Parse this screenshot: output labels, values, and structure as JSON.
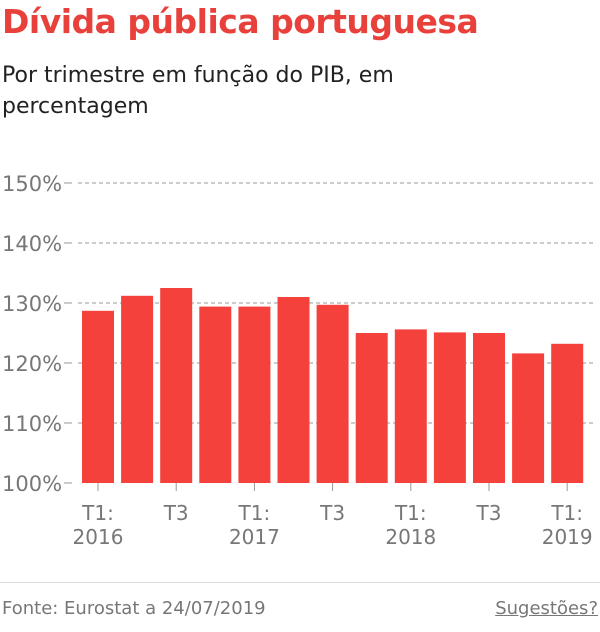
{
  "header": {
    "title": "Dívida pública portuguesa",
    "subtitle": "Por trimestre em função do PIB, em percentagem"
  },
  "footer": {
    "source": "Fonte: Eurostat a 24/07/2019",
    "suggestions_link": "Sugestões?"
  },
  "colors": {
    "bar": "#f4413c",
    "title": "#e8413b",
    "grid": "#999999"
  },
  "chart_data": {
    "type": "bar",
    "title": "Dívida pública portuguesa",
    "subtitle": "Por trimestre em função do PIB, em percentagem",
    "categories": [
      "T1 2016",
      "T2 2016",
      "T3 2016",
      "T4 2016",
      "T1 2017",
      "T2 2017",
      "T3 2017",
      "T4 2017",
      "T1 2018",
      "T2 2018",
      "T3 2018",
      "T4 2018",
      "T1 2019"
    ],
    "x_tick_labels": [
      {
        "index": 0,
        "lines": [
          "T1:",
          "2016"
        ]
      },
      {
        "index": 2,
        "lines": [
          "T3"
        ]
      },
      {
        "index": 4,
        "lines": [
          "T1:",
          "2017"
        ]
      },
      {
        "index": 6,
        "lines": [
          "T3"
        ]
      },
      {
        "index": 8,
        "lines": [
          "T1:",
          "2018"
        ]
      },
      {
        "index": 10,
        "lines": [
          "T3"
        ]
      },
      {
        "index": 12,
        "lines": [
          "T1:",
          "2019"
        ]
      }
    ],
    "values": [
      128.7,
      131.2,
      132.5,
      129.4,
      129.4,
      131.0,
      129.7,
      125.0,
      125.6,
      125.1,
      125.0,
      121.6,
      123.2
    ],
    "ylim": [
      100,
      150
    ],
    "yticks": [
      100,
      110,
      120,
      130,
      140,
      150
    ],
    "ytick_labels": [
      "100%",
      "110%",
      "120%",
      "130%",
      "140%",
      "150%"
    ],
    "grid": true,
    "legend": "none"
  }
}
